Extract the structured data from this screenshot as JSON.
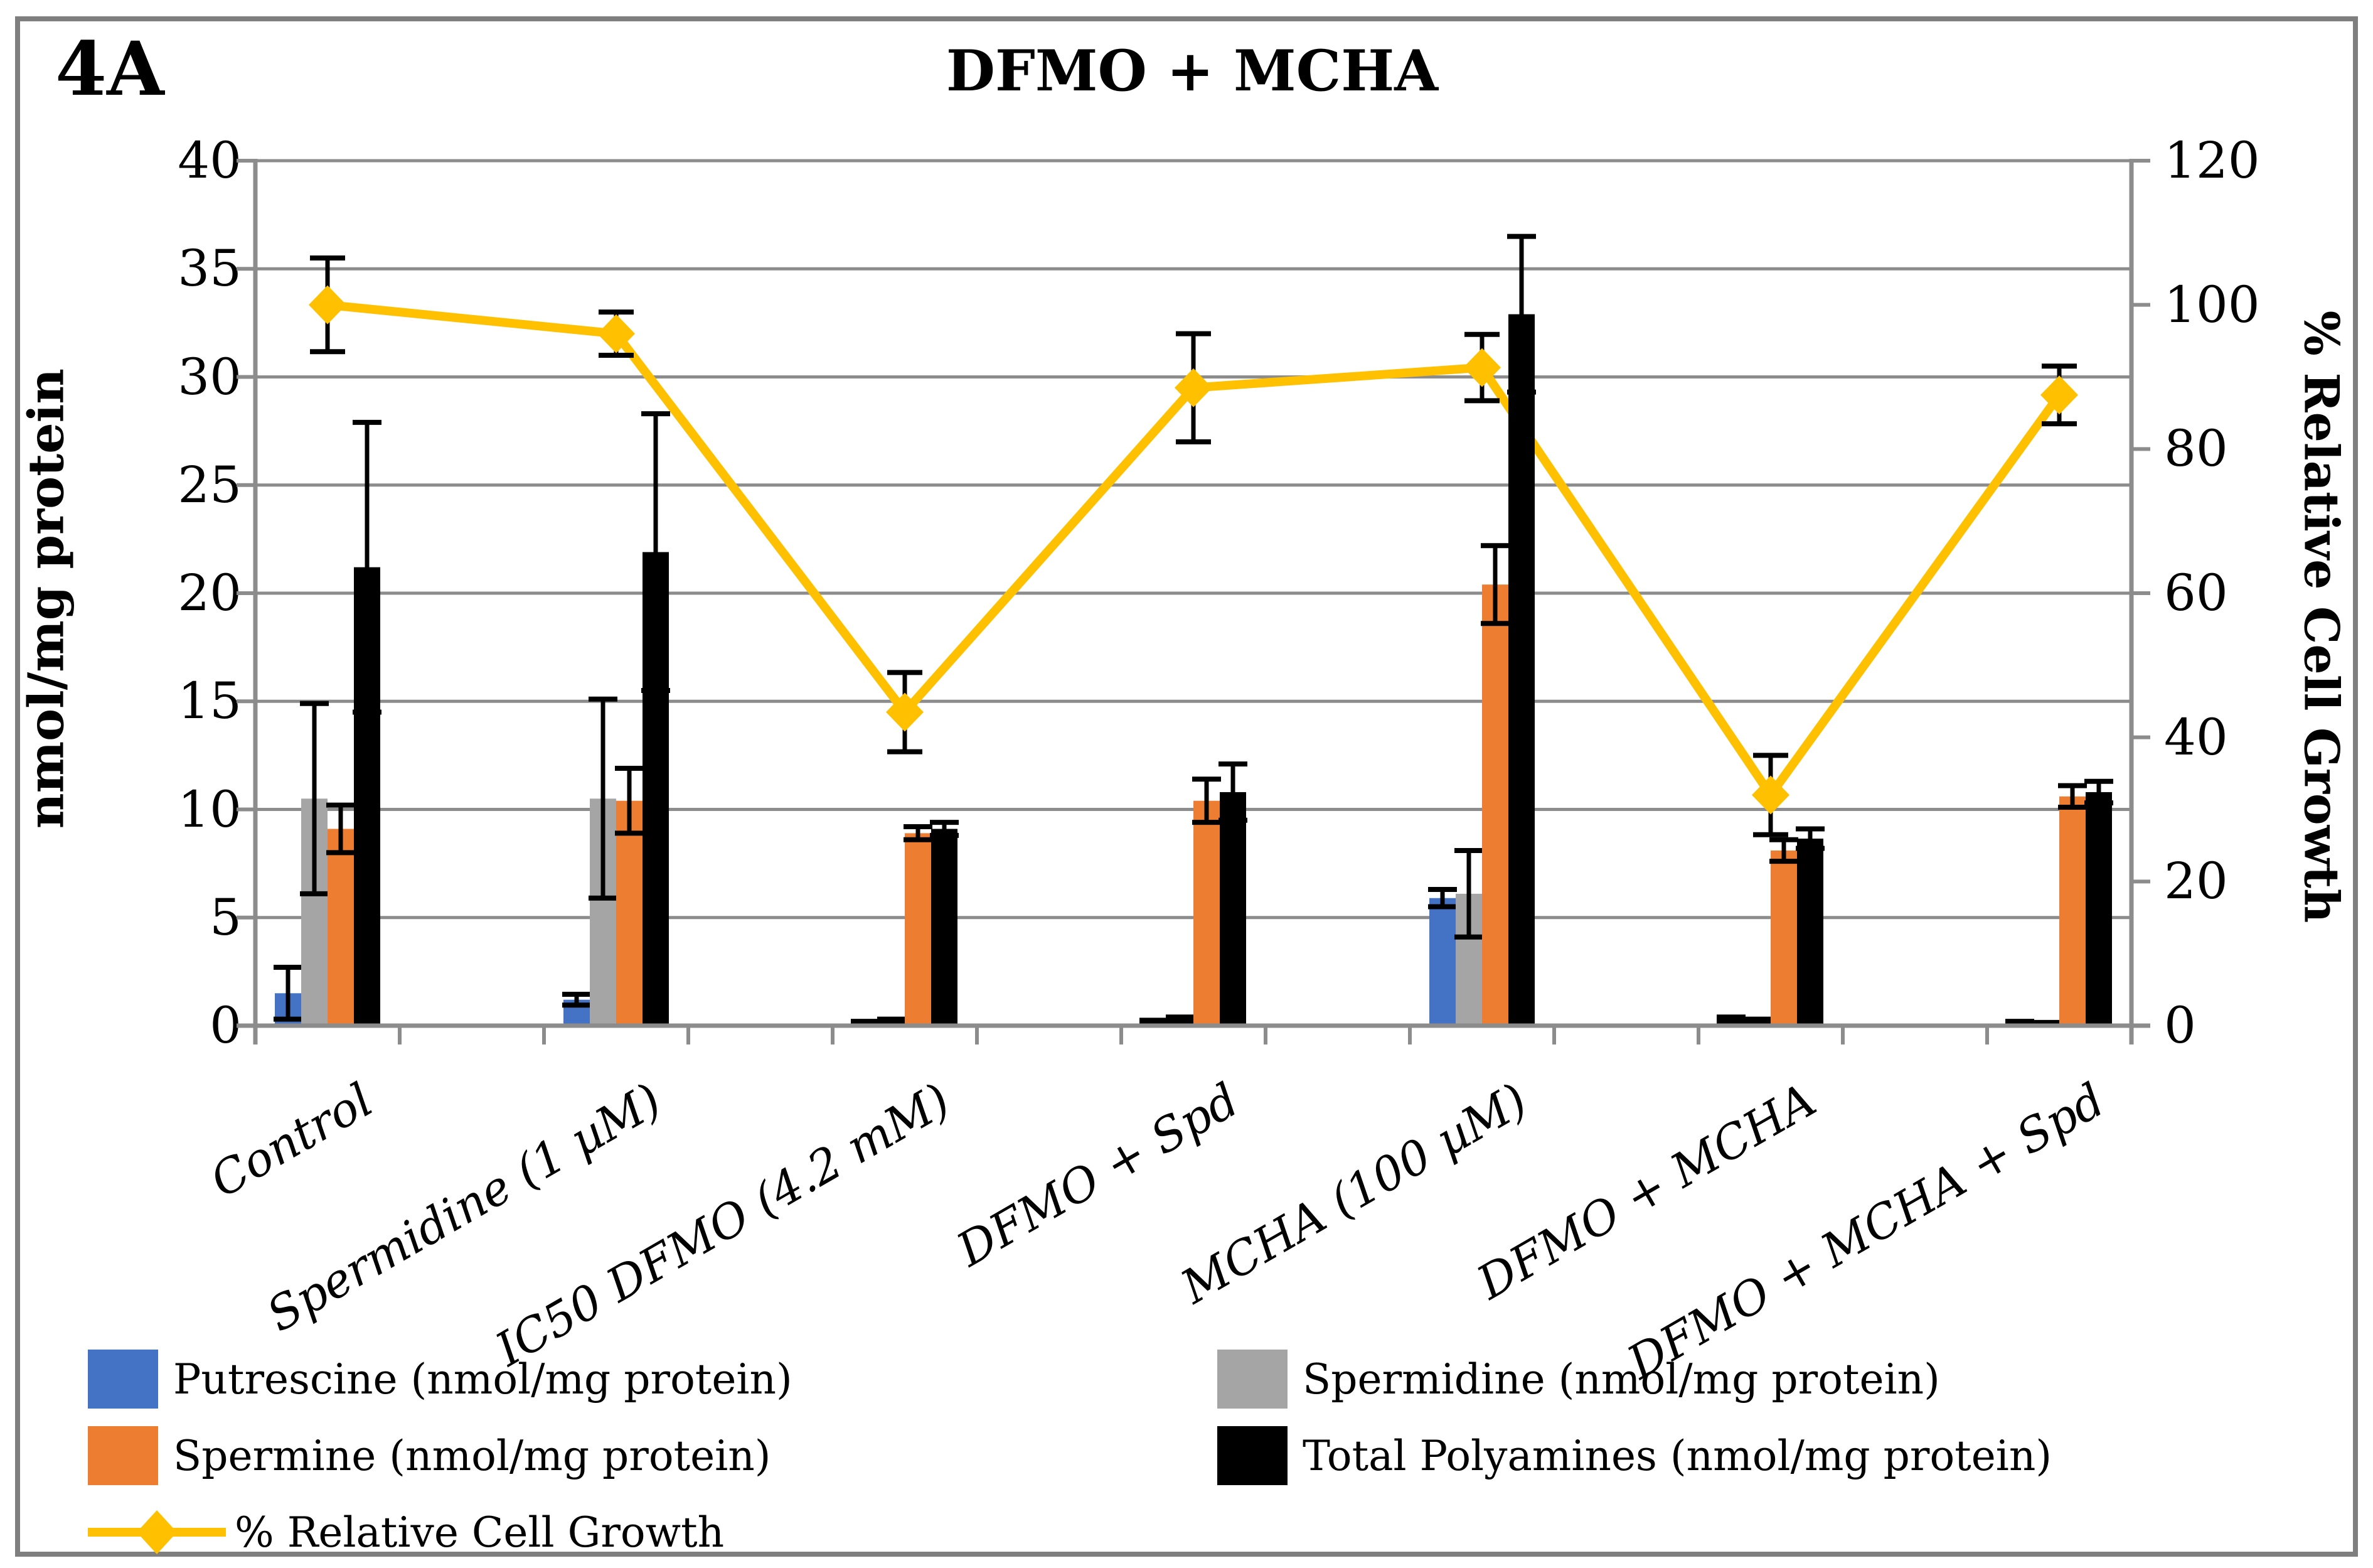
{
  "figure_label": "4A",
  "title": "DFMO + MCHA",
  "left_axis": {
    "label": "nmol/mg protein",
    "min": 0,
    "max": 40,
    "ticks": [
      0,
      5,
      10,
      15,
      20,
      25,
      30,
      35,
      40
    ]
  },
  "right_axis": {
    "label": "% Relative Cell Growth",
    "min": 0,
    "max": 120,
    "ticks": [
      0,
      20,
      40,
      60,
      80,
      100,
      120
    ]
  },
  "colors": {
    "putrescine": "#4472C4",
    "spermidine": "#A5A5A5",
    "spermine": "#ED7D31",
    "total_polyamines": "#000000",
    "growth_line": "#FFC000",
    "gridline": "#8C8C8C",
    "axis": "#8C8C8C",
    "error_bar": "#000000",
    "figure_border": "#7F7F7F"
  },
  "legend": [
    {
      "label": "Putrescine (nmol/mg protein)",
      "color": "#4472C4",
      "type": "swatch",
      "column": 0,
      "row": 0
    },
    {
      "label": "Spermidine (nmol/mg protein)",
      "color": "#A5A5A5",
      "type": "swatch",
      "column": 1,
      "row": 0
    },
    {
      "label": "Spermine (nmol/mg protein)",
      "color": "#ED7D31",
      "type": "swatch",
      "column": 0,
      "row": 1
    },
    {
      "label": "Total Polyamines (nmol/mg protein)",
      "color": "#000000",
      "type": "swatch",
      "column": 1,
      "row": 1
    },
    {
      "label": "% Relative Cell Growth",
      "color": "#FFC000",
      "type": "line-diamond",
      "column": 0,
      "row": 2
    }
  ],
  "chart_data": {
    "type": "bar",
    "subtype": "clustered bars + line on secondary axis",
    "title": "DFMO + MCHA",
    "xlabel": "",
    "ylabel": "nmol/mg protein",
    "y2label": "% Relative Cell Growth",
    "ylim": [
      0,
      40
    ],
    "y2lim": [
      0,
      120
    ],
    "grid": true,
    "legend_position": "bottom",
    "categories": [
      "Control",
      "Spermidine (1 µM)",
      "IC50 DFMO (4.2 mM)",
      "DFMO + Spd",
      "MCHA (100 µM)",
      "DFMO + MCHA",
      "DFMO + MCHA + Spd"
    ],
    "series": [
      {
        "name": "Putrescine (nmol/mg protein)",
        "type": "bar",
        "axis": "left",
        "color": "#4472C4",
        "values": [
          1.5,
          1.2,
          0.15,
          0.15,
          5.9,
          0.3,
          0.15
        ],
        "errors": [
          1.2,
          0.25,
          0.05,
          0.1,
          0.4,
          0.1,
          0.05
        ]
      },
      {
        "name": "Spermidine (nmol/mg protein)",
        "type": "bar",
        "axis": "left",
        "color": "#A5A5A5",
        "values": [
          10.5,
          10.5,
          0.2,
          0.3,
          6.1,
          0.2,
          0.1
        ],
        "errors": [
          4.4,
          4.6,
          0.1,
          0.1,
          2.0,
          0.1,
          0.05
        ]
      },
      {
        "name": "Spermine (nmol/mg protein)",
        "type": "bar",
        "axis": "left",
        "color": "#ED7D31",
        "values": [
          9.1,
          10.4,
          8.9,
          10.4,
          20.4,
          8.1,
          10.6
        ],
        "errors": [
          1.1,
          1.5,
          0.3,
          1.0,
          1.8,
          0.5,
          0.5
        ]
      },
      {
        "name": "Total Polyamines (nmol/mg protein)",
        "type": "bar",
        "axis": "left",
        "color": "#000000",
        "values": [
          21.2,
          21.9,
          9.1,
          10.8,
          32.9,
          8.65,
          10.8
        ],
        "errors": [
          6.7,
          6.4,
          0.3,
          1.3,
          3.6,
          0.45,
          0.5
        ]
      },
      {
        "name": "% Relative Cell Growth",
        "type": "line",
        "axis": "right",
        "color": "#FFC000",
        "marker": "diamond",
        "values": [
          100,
          96,
          43.5,
          88.5,
          91.3,
          32,
          87.5
        ],
        "errors": [
          6.5,
          3,
          5.5,
          7.5,
          4.6,
          5.5,
          4
        ]
      }
    ]
  }
}
